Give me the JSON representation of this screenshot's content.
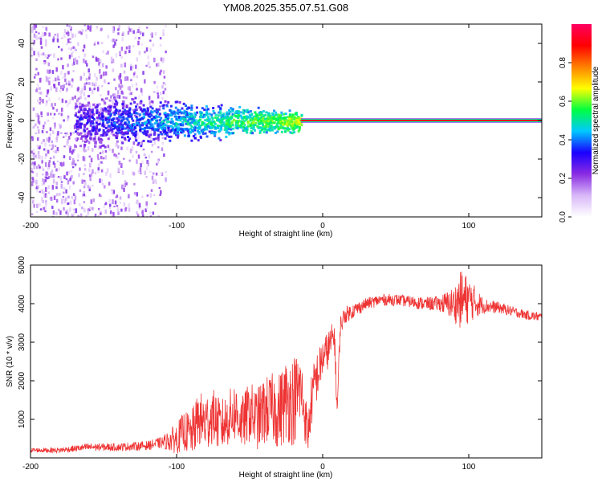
{
  "chart_data": [
    {
      "type": "heatmap",
      "id": "spectrogram",
      "title": "YM08.2025.355.07.51.G08",
      "xlabel": "Height of straight line (km)",
      "ylabel": "Frequency (Hz)",
      "xlim": [
        -200,
        150
      ],
      "ylim": [
        -50,
        50
      ],
      "xticks": [
        -200,
        -100,
        0,
        100
      ],
      "xtick_labels": [
        "-200",
        "-100",
        "0",
        "100"
      ],
      "yticks": [
        -40,
        -20,
        0,
        20,
        40
      ],
      "ytick_labels": [
        "-40",
        "-20",
        "0",
        "20",
        "40"
      ],
      "colorbar": {
        "label": "Normalized spectral amplitude",
        "range": [
          0,
          1
        ],
        "ticks": [
          0,
          0.2,
          0.4,
          0.6,
          0.8
        ],
        "tick_labels": [
          "0.0",
          "0.2",
          "0.4",
          "0.6",
          "0.8"
        ],
        "colormap": [
          "#ffffff",
          "#d8b8f8",
          "#8a2be2",
          "#1a00ff",
          "#00c8ff",
          "#00ff40",
          "#ffff00",
          "#ff8000",
          "#ff0000",
          "#ff0060"
        ]
      },
      "features": {
        "carrier_line_frequency_hz": 0,
        "noise_region_km": [
          -200,
          -108
        ],
        "broadened_region_km": [
          -170,
          -15
        ],
        "stable_region_km": [
          -15,
          150
        ]
      }
    },
    {
      "type": "line",
      "id": "snr",
      "xlabel": "Height of straight line (km)",
      "ylabel": "SNR (10 * v/v)",
      "xlim": [
        -200,
        150
      ],
      "ylim": [
        0,
        5000
      ],
      "xticks": [
        -200,
        -100,
        0,
        100
      ],
      "xtick_labels": [
        "-200",
        "-100",
        "0",
        "100"
      ],
      "yticks": [
        1000,
        2000,
        3000,
        4000,
        5000
      ],
      "ytick_labels": [
        "1000",
        "2000",
        "3000",
        "4000",
        "5000"
      ],
      "series": [
        {
          "name": "SNR",
          "color": "#ee3333",
          "x": [
            -200,
            -180,
            -160,
            -140,
            -120,
            -110,
            -100,
            -95,
            -90,
            -85,
            -80,
            -75,
            -70,
            -65,
            -60,
            -55,
            -50,
            -45,
            -40,
            -35,
            -30,
            -25,
            -20,
            -15,
            -10,
            -8,
            -5,
            -2,
            0,
            2,
            5,
            8,
            10,
            12,
            15,
            20,
            25,
            30,
            40,
            50,
            60,
            70,
            80,
            90,
            95,
            100,
            110,
            120,
            130,
            140,
            150
          ],
          "values": [
            200,
            200,
            280,
            280,
            320,
            400,
            500,
            700,
            600,
            1000,
            900,
            1100,
            800,
            1000,
            1200,
            900,
            1200,
            1000,
            1200,
            1300,
            1200,
            1500,
            1500,
            1800,
            600,
            1400,
            2000,
            2300,
            2600,
            2700,
            2900,
            3200,
            1200,
            3400,
            3700,
            3800,
            3900,
            4000,
            4100,
            4100,
            4050,
            4000,
            4000,
            4000,
            4100,
            4100,
            3950,
            3900,
            3800,
            3700,
            3650
          ],
          "noise_amplitude": [
            60,
            70,
            100,
            100,
            120,
            150,
            400,
            500,
            600,
            700,
            800,
            700,
            700,
            700,
            800,
            700,
            800,
            800,
            900,
            900,
            1000,
            1100,
            1200,
            1000,
            500,
            700,
            700,
            600,
            500,
            500,
            500,
            400,
            300,
            300,
            220,
            200,
            170,
            150,
            150,
            150,
            150,
            170,
            200,
            450,
            800,
            600,
            200,
            150,
            130,
            120,
            120
          ]
        }
      ]
    }
  ]
}
